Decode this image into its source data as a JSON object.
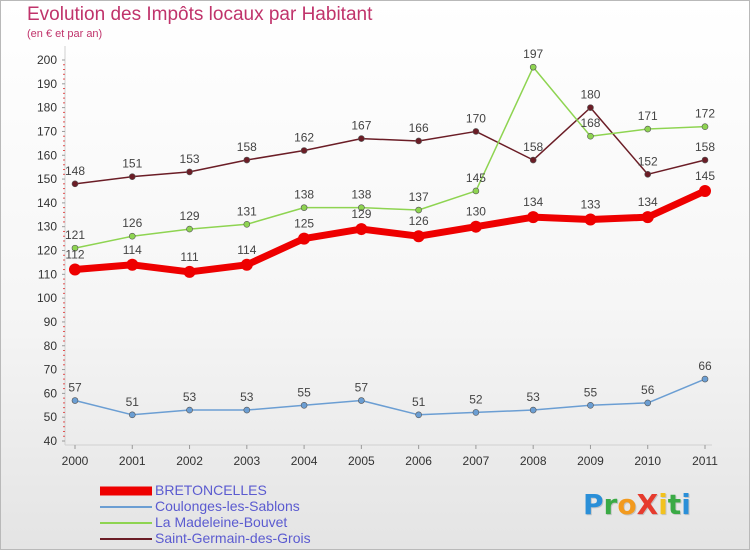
{
  "header": {
    "title": "Evolution des Impôts locaux par Habitant",
    "subtitle": "(en € et par an)"
  },
  "logo": {
    "text": "ProXiti",
    "letters": [
      {
        "ch": "P",
        "color": "#2a8fd8"
      },
      {
        "ch": "r",
        "color": "#3aaa45"
      },
      {
        "ch": "o",
        "color": "#f29a1e"
      },
      {
        "ch": "X",
        "color": "#e63b2e"
      },
      {
        "ch": "i",
        "color": "#f2c21e"
      },
      {
        "ch": "t",
        "color": "#3aaa45"
      },
      {
        "ch": "i",
        "color": "#2a8fd8"
      }
    ]
  },
  "chart_data": {
    "type": "line",
    "title": "Evolution des Impôts locaux par Habitant",
    "subtitle": "(en € et par an)",
    "xlabel": "",
    "ylabel": "",
    "ylim": [
      40,
      200
    ],
    "ytick_step": 10,
    "grid": false,
    "categories": [
      "2000",
      "2001",
      "2002",
      "2003",
      "2004",
      "2005",
      "2006",
      "2007",
      "2008",
      "2009",
      "2010",
      "2011"
    ],
    "series": [
      {
        "name": "Saint-Germain-des-Grois",
        "color": "#6b1d26",
        "width": 1.5,
        "marker": 3,
        "values": [
          148,
          151,
          153,
          158,
          162,
          167,
          166,
          170,
          158,
          180,
          152,
          158
        ]
      },
      {
        "name": "La Madeleine-Bouvet",
        "color": "#8ed451",
        "width": 1.5,
        "marker": 3,
        "values": [
          121,
          126,
          129,
          131,
          138,
          138,
          137,
          145,
          197,
          168,
          171,
          172
        ]
      },
      {
        "name": "Coulonges-les-Sablons",
        "color": "#6b9ed3",
        "width": 1.5,
        "marker": 3,
        "values": [
          57,
          51,
          53,
          53,
          55,
          57,
          51,
          52,
          53,
          55,
          56,
          66
        ]
      },
      {
        "name": "BRETONCELLES",
        "color": "#ee0000",
        "width": 7,
        "marker": 6,
        "values": [
          112,
          114,
          111,
          114,
          125,
          129,
          126,
          130,
          134,
          133,
          134,
          145
        ]
      }
    ],
    "legend": {
      "placement": "bottom-left",
      "order": [
        "BRETONCELLES",
        "Coulonges-les-Sablons",
        "La Madeleine-Bouvet",
        "Saint-Germain-des-Grois"
      ]
    }
  }
}
